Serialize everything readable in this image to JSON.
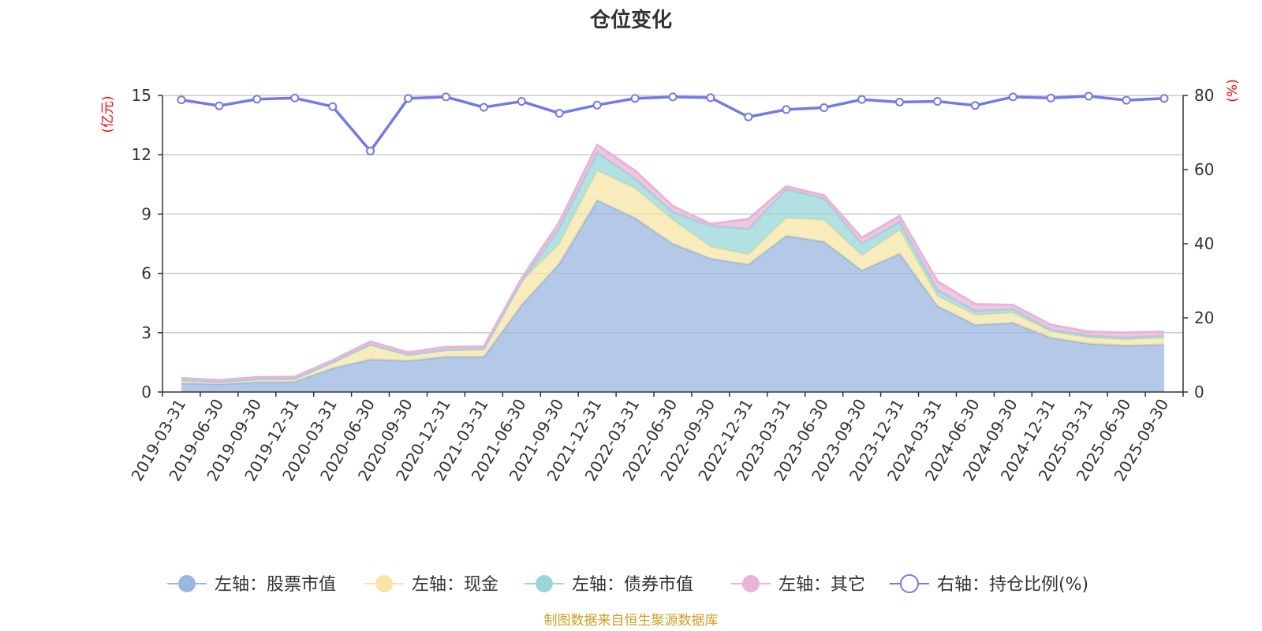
{
  "chart_data": {
    "type": "area",
    "title": "仓位变化",
    "left_axis_unit": "(亿元)",
    "right_axis_unit": "(%)",
    "left_ylim": [
      0,
      15
    ],
    "left_ticks": [
      0,
      3,
      6,
      9,
      12,
      15
    ],
    "right_ylim": [
      0,
      80
    ],
    "right_ticks": [
      0,
      20,
      40,
      60,
      80
    ],
    "categories": [
      "2019-03-31",
      "2019-06-30",
      "2019-09-30",
      "2019-12-31",
      "2020-03-31",
      "2020-06-30",
      "2020-09-30",
      "2020-12-31",
      "2021-03-31",
      "2021-06-30",
      "2021-09-30",
      "2021-12-31",
      "2022-03-31",
      "2022-06-30",
      "2022-09-30",
      "2022-12-31",
      "2023-03-31",
      "2023-06-30",
      "2023-09-30",
      "2023-12-31",
      "2024-03-31",
      "2024-06-30",
      "2024-09-30",
      "2024-12-31",
      "2025-03-31",
      "2025-06-30",
      "2025-09-30"
    ],
    "series": [
      {
        "name": "左轴：股票市值",
        "axis": "left",
        "stack": true,
        "color": "#9bb7e0",
        "values": [
          0.45,
          0.4,
          0.5,
          0.52,
          1.2,
          1.65,
          1.58,
          1.78,
          1.78,
          4.4,
          6.5,
          9.7,
          8.8,
          7.5,
          6.75,
          6.45,
          7.9,
          7.6,
          6.15,
          7.0,
          4.35,
          3.4,
          3.5,
          2.75,
          2.45,
          2.35,
          2.4
        ]
      },
      {
        "name": "左轴：现金",
        "axis": "left",
        "stack": true,
        "color": "#f7e5a5",
        "values": [
          0.15,
          0.12,
          0.15,
          0.15,
          0.3,
          0.75,
          0.3,
          0.35,
          0.4,
          1.2,
          1.0,
          1.5,
          1.5,
          1.2,
          0.6,
          0.5,
          0.9,
          1.1,
          0.75,
          1.2,
          0.5,
          0.5,
          0.5,
          0.3,
          0.3,
          0.3,
          0.35
        ]
      },
      {
        "name": "左轴：债券市值",
        "axis": "left",
        "stack": true,
        "color": "#9ad6d9",
        "values": [
          0.0,
          0.0,
          0.0,
          0.0,
          0.0,
          0.0,
          0.0,
          0.0,
          0.0,
          0.0,
          0.8,
          0.9,
          0.5,
          0.4,
          1.05,
          1.3,
          1.45,
          1.1,
          0.6,
          0.4,
          0.3,
          0.2,
          0.2,
          0.1,
          0.1,
          0.1,
          0.1
        ]
      },
      {
        "name": "左轴：其它",
        "axis": "left",
        "stack": true,
        "color": "#e8b4d8",
        "values": [
          0.1,
          0.08,
          0.1,
          0.1,
          0.1,
          0.15,
          0.12,
          0.15,
          0.12,
          0.15,
          0.3,
          0.4,
          0.4,
          0.3,
          0.1,
          0.5,
          0.15,
          0.15,
          0.3,
          0.3,
          0.45,
          0.35,
          0.2,
          0.25,
          0.2,
          0.25,
          0.2
        ]
      },
      {
        "name": "右轴：持仓比例(%)",
        "axis": "right",
        "type": "line",
        "color": "#7479ea",
        "values": [
          78.8,
          77.2,
          79.0,
          79.3,
          77.0,
          65.0,
          79.2,
          79.6,
          76.8,
          78.4,
          75.2,
          77.4,
          79.2,
          79.6,
          79.4,
          74.2,
          76.2,
          76.7,
          78.9,
          78.2,
          78.4,
          77.3,
          79.6,
          79.3,
          79.8,
          78.7,
          79.2
        ]
      }
    ],
    "legend_position": "bottom",
    "grid": true,
    "source_note": "制图数据来自恒生聚源数据库"
  }
}
